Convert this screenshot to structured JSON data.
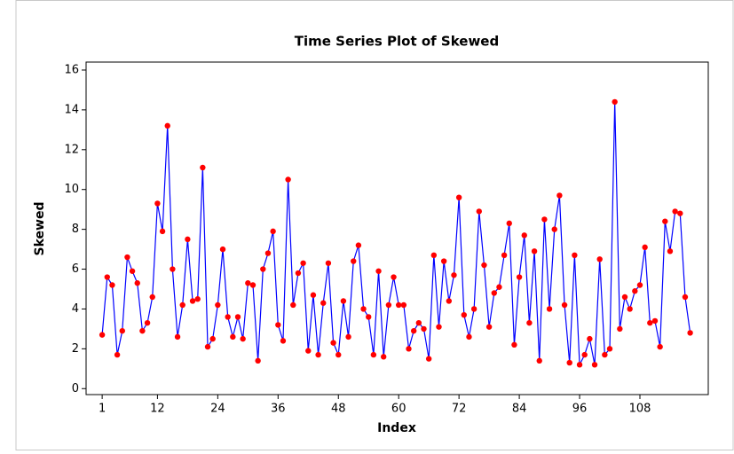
{
  "chart_data": {
    "type": "line",
    "title": "Time Series Plot of Skewed",
    "xlabel": "Index",
    "ylabel": "Skewed",
    "x": [
      1,
      2,
      3,
      4,
      5,
      6,
      7,
      8,
      9,
      10,
      11,
      12,
      13,
      14,
      15,
      16,
      17,
      18,
      19,
      20,
      21,
      22,
      23,
      24,
      25,
      26,
      27,
      28,
      29,
      30,
      31,
      32,
      33,
      34,
      35,
      36,
      37,
      38,
      39,
      40,
      41,
      42,
      43,
      44,
      45,
      46,
      47,
      48,
      49,
      50,
      51,
      52,
      53,
      54,
      55,
      56,
      57,
      58,
      59,
      60,
      61,
      62,
      63,
      64,
      65,
      66,
      67,
      68,
      69,
      70,
      71,
      72,
      73,
      74,
      75,
      76,
      77,
      78,
      79,
      80,
      81,
      82,
      83,
      84,
      85,
      86,
      87,
      88,
      89,
      90,
      91,
      92,
      93,
      94,
      95,
      96,
      97,
      98,
      99,
      100,
      101,
      102,
      103,
      104,
      105,
      106,
      107,
      108,
      109,
      110,
      111,
      112,
      113,
      114,
      115,
      116,
      117,
      118
    ],
    "series": [
      {
        "name": "Skewed",
        "color": "#0000ff",
        "marker_color": "#ff0000",
        "values": [
          2.7,
          5.6,
          5.2,
          1.7,
          2.9,
          6.6,
          5.9,
          5.3,
          2.9,
          3.3,
          4.6,
          9.3,
          7.9,
          13.2,
          6.0,
          2.6,
          4.2,
          7.5,
          4.4,
          4.5,
          11.1,
          2.1,
          2.5,
          4.2,
          7.0,
          3.6,
          2.6,
          3.6,
          2.5,
          5.3,
          5.2,
          1.4,
          6.0,
          6.8,
          7.9,
          3.2,
          2.4,
          10.5,
          4.2,
          5.8,
          6.3,
          1.9,
          4.7,
          1.7,
          4.3,
          6.3,
          2.3,
          1.7,
          4.4,
          2.6,
          6.4,
          7.2,
          4.0,
          3.6,
          1.7,
          5.9,
          1.6,
          4.2,
          5.6,
          4.2,
          4.2,
          2.0,
          2.9,
          3.3,
          3.0,
          1.5,
          6.7,
          3.1,
          6.4,
          4.4,
          5.7,
          9.6,
          3.7,
          2.6,
          4.0,
          8.9,
          6.2,
          3.1,
          4.8,
          5.1,
          6.7,
          8.3,
          2.2,
          5.6,
          7.7,
          3.3,
          6.9,
          1.4,
          8.5,
          4.0,
          8.0,
          9.7,
          4.2,
          1.3,
          6.7,
          1.2,
          1.7,
          2.5,
          1.2,
          6.5,
          1.7,
          2.0,
          14.4,
          3.0,
          4.6,
          4.0,
          4.9,
          5.2,
          7.1,
          3.3,
          3.4,
          2.1,
          8.4,
          6.9,
          8.9,
          8.8,
          4.6,
          2.8
        ]
      }
    ],
    "xlim": [
      -2.2,
      121.6
    ],
    "xticks": [
      1,
      12,
      24,
      36,
      48,
      60,
      72,
      84,
      96,
      108
    ],
    "ylim": [
      -0.3,
      16.4
    ],
    "yticks": [
      0,
      2,
      4,
      6,
      8,
      10,
      12,
      14,
      16
    ]
  }
}
